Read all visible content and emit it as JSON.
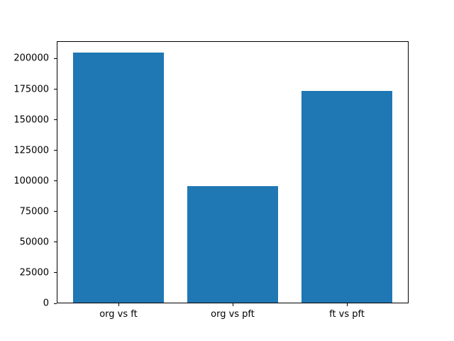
{
  "chart_data": {
    "type": "bar",
    "categories": [
      "org vs ft",
      "org vs pft",
      "ft vs pft"
    ],
    "values": [
      205000,
      95500,
      173500
    ],
    "title": "",
    "xlabel": "",
    "ylabel": "",
    "ylim": [
      0,
      214200
    ],
    "yticks": [
      0,
      25000,
      50000,
      75000,
      100000,
      125000,
      150000,
      175000,
      200000
    ],
    "bar_color": "#1f77b4",
    "axis_color": "#000000",
    "background_color": "#ffffff",
    "grid": false,
    "legend": null
  }
}
